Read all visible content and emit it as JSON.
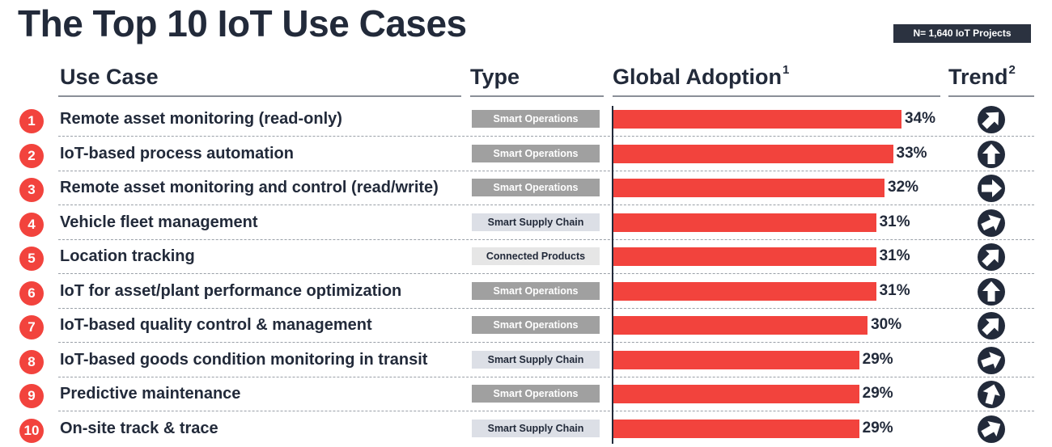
{
  "title": "The Top 10 IoT Use Cases",
  "sample_badge": "N= 1,640 IoT Projects",
  "headers": {
    "use_case": "Use Case",
    "type": "Type",
    "adoption": "Global Adoption",
    "adoption_sup": "1",
    "trend": "Trend",
    "trend_sup": "2"
  },
  "colors": {
    "bar": "#f2433d",
    "rank_circle": "#f2433d",
    "text": "#222a3a",
    "trend_icon": "#222a3a"
  },
  "chart_data": {
    "type": "bar",
    "orientation": "horizontal",
    "title": "The Top 10 IoT Use Cases",
    "categories": [
      "Remote asset monitoring (read-only)",
      "IoT-based process automation",
      "Remote asset monitoring and control (read/write)",
      "Vehicle fleet management",
      "Location tracking",
      "IoT for asset/plant performance optimization",
      "IoT-based quality control & management",
      "IoT-based goods condition monitoring in transit",
      "Predictive maintenance",
      "On-site track & trace"
    ],
    "values": [
      34,
      33,
      32,
      31,
      31,
      31,
      30,
      29,
      29,
      29
    ],
    "value_labels": [
      "34%",
      "33%",
      "32%",
      "31%",
      "31%",
      "31%",
      "30%",
      "29%",
      "29%",
      "29%"
    ],
    "ranks": [
      "1",
      "2",
      "3",
      "4",
      "5",
      "6",
      "7",
      "8",
      "9",
      "10"
    ],
    "types": [
      "Smart Operations",
      "Smart Operations",
      "Smart Operations",
      "Smart Supply Chain",
      "Connected Products",
      "Smart Operations",
      "Smart Operations",
      "Smart Supply Chain",
      "Smart Operations",
      "Smart Supply Chain"
    ],
    "trend_direction_deg": [
      45,
      0,
      90,
      65,
      45,
      0,
      45,
      70,
      15,
      60
    ],
    "grid": false,
    "legend": "none"
  }
}
